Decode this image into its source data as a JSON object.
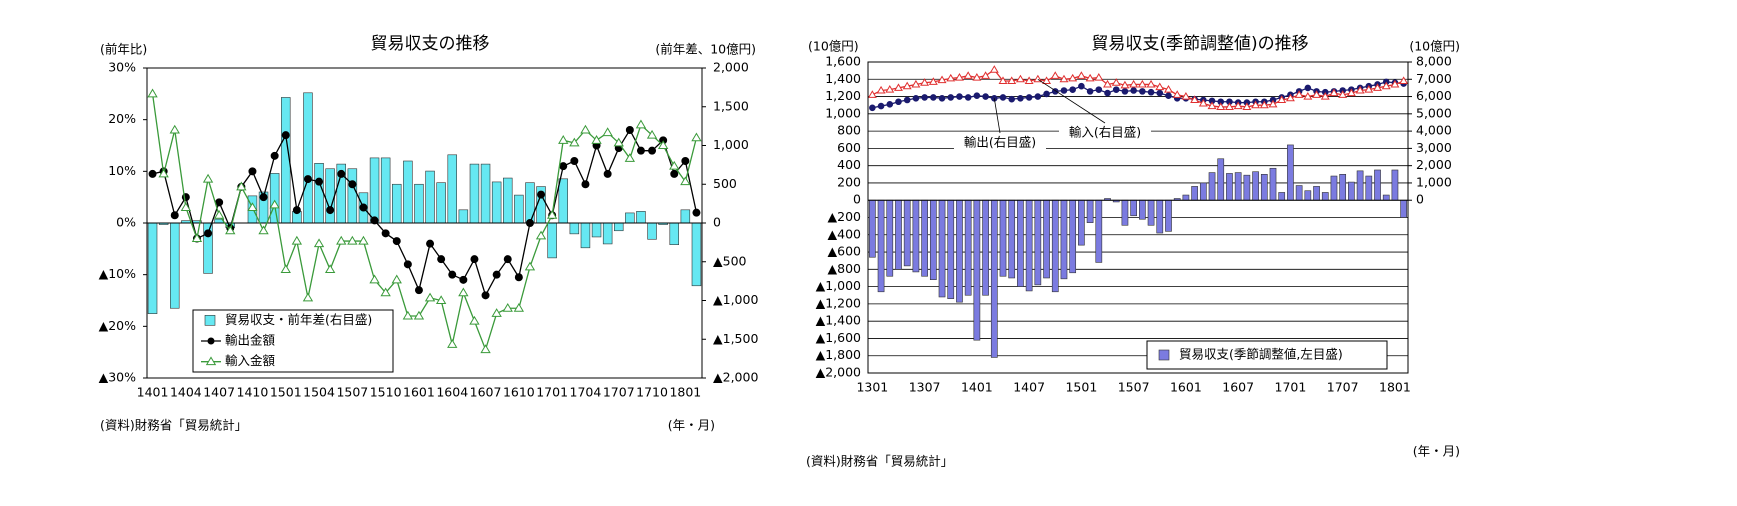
{
  "chart_data": [
    {
      "type": "combo",
      "title": "貿易収支の推移",
      "y_label": "(前年比)",
      "y2_label": "(前年差、10億円)",
      "source": "(資料)財務省「貿易統計」",
      "x_unit": "(年・月)",
      "legend": "lower left",
      "grid": false,
      "categories": [
        "1401",
        null,
        null,
        "1404",
        null,
        null,
        "1407",
        null,
        null,
        "1410",
        null,
        null,
        "1501",
        null,
        null,
        "1504",
        null,
        null,
        "1507",
        null,
        null,
        "1510",
        null,
        null,
        "1601",
        null,
        null,
        "1604",
        null,
        null,
        "1607",
        null,
        null,
        "1610",
        null,
        null,
        "1701",
        null,
        null,
        "1704",
        null,
        null,
        "1707",
        null,
        null,
        "1710",
        null,
        null,
        "1801",
        null
      ],
      "ylim": [
        -30,
        30
      ],
      "yticks": [
        {
          "value": 30,
          "label": "30%"
        },
        {
          "value": 20,
          "label": "20%"
        },
        {
          "value": 10,
          "label": "10%"
        },
        {
          "value": 0,
          "label": "0%"
        },
        {
          "value": -10,
          "label": "▲10%"
        },
        {
          "value": -20,
          "label": "▲20%"
        },
        {
          "value": -30,
          "label": "▲30%"
        }
      ],
      "y2lim": [
        -2000,
        2000
      ],
      "y2ticks": [
        {
          "value": 2000,
          "label": "2,000"
        },
        {
          "value": 1500,
          "label": "1,500"
        },
        {
          "value": 1000,
          "label": "1,000"
        },
        500,
        0,
        {
          "value": -500,
          "label": "▲500"
        },
        {
          "value": -1000,
          "label": "▲1,000"
        },
        {
          "value": -1500,
          "label": "▲1,500"
        },
        {
          "value": -2000,
          "label": "▲2,000"
        }
      ],
      "series": [
        {
          "name": "貿易収支・前年差(右目盛)",
          "type": "bar",
          "axis": "y2",
          "color": "#66e8f2",
          "values": [
            -1170,
            -20,
            -1100,
            30,
            30,
            -650,
            50,
            -60,
            0,
            350,
            400,
            640,
            1620,
            150,
            1680,
            770,
            700,
            760,
            700,
            390,
            840,
            840,
            500,
            800,
            500,
            670,
            520,
            880,
            170,
            760,
            760,
            530,
            580,
            360,
            520,
            470,
            -450,
            570,
            -140,
            -320,
            -180,
            -270,
            -100,
            130,
            150,
            -210,
            -20,
            -280,
            170,
            -810
          ]
        },
        {
          "name": "輸出金額",
          "type": "line",
          "marker": "circle",
          "color": "#000000",
          "values": [
            9.5,
            10,
            1.5,
            5,
            -3,
            -2,
            4,
            -1,
            7,
            10,
            5,
            13,
            17,
            2.5,
            8.5,
            8,
            2.5,
            9.5,
            7.5,
            3,
            0.5,
            -2,
            -3.5,
            -8,
            -13,
            -4,
            -7,
            -10,
            -11,
            -7,
            -14,
            -10,
            -7,
            -10.5,
            0,
            5.5,
            1.5,
            11,
            12,
            7.5,
            15,
            9.5,
            14.5,
            18,
            14,
            14,
            16,
            9.5,
            12,
            2
          ]
        },
        {
          "name": "輸入金額",
          "type": "line",
          "marker": "triangle",
          "color": "#3a9a3a",
          "values": [
            25,
            9.5,
            18,
            3,
            -3,
            8.5,
            1.5,
            -1.5,
            7,
            3,
            -1.5,
            3.5,
            -9,
            -3.5,
            -14.5,
            -4,
            -9,
            -3.5,
            -3.5,
            -3.5,
            -11,
            -13.5,
            -11,
            -18,
            -18,
            -14.5,
            -15,
            -23.5,
            -13.5,
            -19,
            -24.5,
            -17.5,
            -16.5,
            -16.5,
            -8.5,
            -2.5,
            1.5,
            16,
            15.5,
            18,
            16,
            17.5,
            15.5,
            12.5,
            19,
            17,
            15,
            11,
            8,
            16.5
          ]
        }
      ]
    },
    {
      "type": "combo",
      "title": "貿易収支(季節調整値)の推移",
      "y_label": "(10億円)",
      "y2_label": "(10億円)",
      "source": "(資料)財務省「貿易統計」",
      "x_unit": "(年・月)",
      "legend": "lower right",
      "grid": true,
      "categories": [
        "1301",
        null,
        null,
        null,
        null,
        null,
        "1307",
        null,
        null,
        null,
        null,
        null,
        "1401",
        null,
        null,
        null,
        null,
        null,
        "1407",
        null,
        null,
        null,
        null,
        null,
        "1501",
        null,
        null,
        null,
        null,
        null,
        "1507",
        null,
        null,
        null,
        null,
        null,
        "1601",
        null,
        null,
        null,
        null,
        null,
        "1607",
        null,
        null,
        null,
        null,
        null,
        "1701",
        null,
        null,
        null,
        null,
        null,
        "1707",
        null,
        null,
        null,
        null,
        null,
        "1801",
        null
      ],
      "ylim": [
        -2000,
        1600
      ],
      "yticks": [
        {
          "value": 1600,
          "label": "1,600"
        },
        {
          "value": 1400,
          "label": "1,400"
        },
        {
          "value": 1200,
          "label": "1,200"
        },
        {
          "value": 1000,
          "label": "1,000"
        },
        800,
        600,
        400,
        200,
        0,
        {
          "value": -200,
          "label": "▲200"
        },
        {
          "value": -400,
          "label": "▲400"
        },
        {
          "value": -600,
          "label": "▲600"
        },
        {
          "value": -800,
          "label": "▲800"
        },
        {
          "value": -1000,
          "label": "▲1,000"
        },
        {
          "value": -1200,
          "label": "▲1,200"
        },
        {
          "value": -1400,
          "label": "▲1,400"
        },
        {
          "value": -1600,
          "label": "▲1,600"
        },
        {
          "value": -1800,
          "label": "▲1,800"
        },
        {
          "value": -2000,
          "label": "▲2,000"
        }
      ],
      "y2lim": [
        -10000,
        8000
      ],
      "y2ticks": [
        {
          "value": 8000,
          "label": "8,000"
        },
        {
          "value": 7000,
          "label": "7,000"
        },
        {
          "value": 6000,
          "label": "6,000"
        },
        {
          "value": 5000,
          "label": "5,000"
        },
        {
          "value": 4000,
          "label": "4,000"
        },
        {
          "value": 3000,
          "label": "3,000"
        },
        {
          "value": 2000,
          "label": "2,000"
        },
        {
          "value": 1000,
          "label": "1,000"
        },
        0
      ],
      "series": [
        {
          "name": "貿易収支(季節調整値,左目盛)",
          "type": "bar",
          "axis": "y",
          "color": "#7b7be0",
          "values": [
            -660,
            -1060,
            -880,
            -800,
            -760,
            -830,
            -880,
            -920,
            -1120,
            -1140,
            -1180,
            -1100,
            -1620,
            -1100,
            -1820,
            -880,
            -900,
            -1000,
            -1050,
            -980,
            -900,
            -1060,
            -910,
            -840,
            -520,
            -260,
            -720,
            20,
            -20,
            -290,
            -180,
            -220,
            -290,
            -380,
            -360,
            20,
            60,
            160,
            200,
            320,
            480,
            310,
            320,
            290,
            330,
            300,
            370,
            90,
            640,
            170,
            110,
            160,
            90,
            280,
            300,
            210,
            340,
            280,
            350,
            60,
            350,
            -200
          ]
        },
        {
          "name": "輸出(右目盛)",
          "type": "line",
          "axis": "y2",
          "marker": "circle",
          "color": "#1a1a6e",
          "annotate": true,
          "values": [
            5350,
            5450,
            5550,
            5700,
            5800,
            5900,
            5950,
            5950,
            5900,
            5950,
            6000,
            5950,
            6050,
            6000,
            5900,
            5950,
            5850,
            5900,
            5950,
            6000,
            6150,
            6300,
            6350,
            6400,
            6600,
            6300,
            6400,
            6200,
            6400,
            6300,
            6350,
            6300,
            6250,
            6200,
            6050,
            5900,
            5900,
            5850,
            5800,
            5750,
            5700,
            5700,
            5650,
            5650,
            5700,
            5700,
            5800,
            5950,
            6100,
            6300,
            6500,
            6300,
            6250,
            6300,
            6350,
            6400,
            6500,
            6600,
            6700,
            6850,
            6800,
            6750
          ]
        },
        {
          "name": "輸入(右目盛)",
          "type": "line",
          "axis": "y2",
          "marker": "triangle",
          "color": "#e03030",
          "annotate": true,
          "values": [
            6100,
            6350,
            6400,
            6500,
            6600,
            6700,
            6800,
            6850,
            6950,
            7050,
            7100,
            7200,
            7100,
            7200,
            7550,
            6900,
            6900,
            7000,
            6900,
            7000,
            6900,
            7200,
            7000,
            7050,
            7200,
            7050,
            7100,
            6700,
            6800,
            6650,
            6700,
            6700,
            6700,
            6550,
            6400,
            6100,
            6000,
            5800,
            5600,
            5450,
            5400,
            5400,
            5450,
            5400,
            5500,
            5500,
            5550,
            5800,
            5900,
            6100,
            6000,
            6100,
            6000,
            6200,
            6100,
            6200,
            6350,
            6400,
            6500,
            6600,
            6700,
            6900
          ]
        }
      ]
    }
  ]
}
